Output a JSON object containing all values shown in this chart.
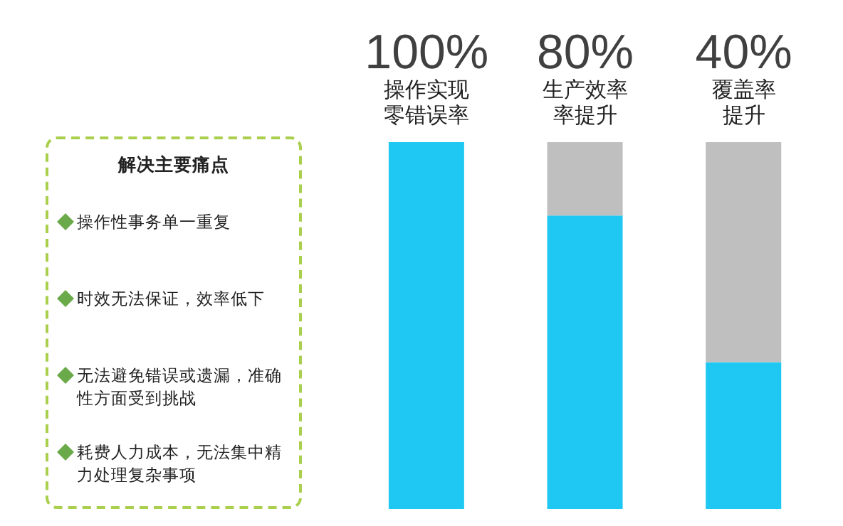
{
  "chart_data": {
    "type": "bar",
    "stacked": true,
    "tick_labels": "x",
    "categories": [
      "操作实现零错误率",
      "生产效率率提升",
      "覆盖率提升"
    ],
    "series": [
      {
        "color": "#1fc8f2",
        "values": [
          100,
          80,
          40
        ],
        "value_labels": [
          "100%",
          "80%",
          "40%"
        ]
      },
      {
        "color": "#bfbfbf",
        "values": [
          0,
          20,
          60
        ]
      }
    ],
    "annotations": [
      "解决主要痛点",
      "操作性事务单一重复",
      "时效无法保证，效率低下",
      "无法避免错误或遗漏，准确性方面受到挑战",
      "耗费人力成本，无法集中精力处理复杂事项"
    ]
  }
}
